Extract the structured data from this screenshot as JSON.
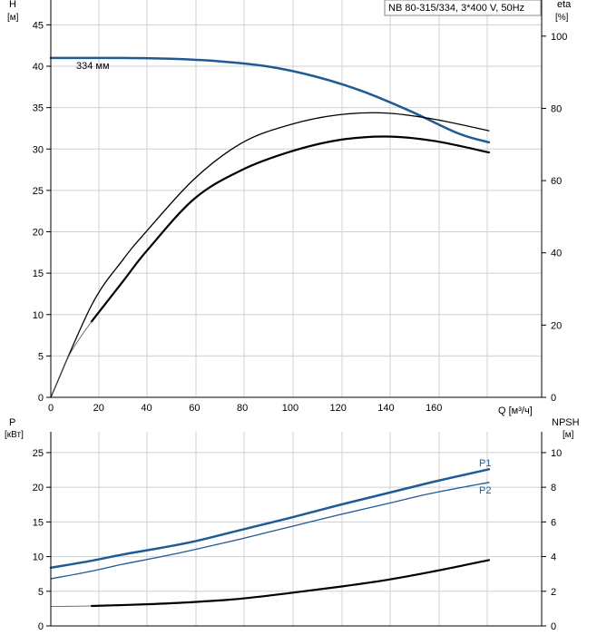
{
  "chart_data": [
    {
      "type": "line",
      "id": "top",
      "title": "NB 80-315/334, 3*400 V, 50Hz",
      "left_axis": {
        "label": "H",
        "unit": "[м]",
        "ylim": [
          0,
          48
        ],
        "ticks": [
          0,
          5,
          10,
          15,
          20,
          25,
          30,
          35,
          40,
          45
        ]
      },
      "right_axis": {
        "label": "eta",
        "unit": "[%]",
        "ylim": [
          0,
          110
        ],
        "ticks": [
          0,
          20,
          40,
          60,
          80,
          100
        ]
      },
      "x_axis": {
        "label": "Q [м³/ч]",
        "xlim": [
          0,
          205
        ],
        "ticks": [
          0,
          20,
          40,
          60,
          80,
          100,
          120,
          140,
          160
        ]
      },
      "grid": true,
      "series": [
        {
          "name": "334 мм",
          "axis": "left",
          "color": "#1f5a96",
          "width": 2.5,
          "x": [
            0,
            17,
            30,
            50,
            70,
            90,
            110,
            130,
            150,
            170,
            183
          ],
          "y": [
            41.0,
            41.0,
            41.0,
            40.9,
            40.6,
            40.0,
            38.8,
            37.0,
            34.6,
            31.9,
            30.8
          ]
        },
        {
          "name": "",
          "axis": "right",
          "color": "#000000",
          "width": 1.3,
          "x": [
            0,
            17,
            30,
            40,
            60,
            80,
            100,
            120,
            140,
            160,
            183
          ],
          "y": [
            0,
            25.5,
            38,
            46,
            60.5,
            70.5,
            75.5,
            78.2,
            78.7,
            77.0,
            73.8
          ]
        },
        {
          "name": "",
          "axis": "right",
          "color": "#000000",
          "width": 2.2,
          "x": [
            17,
            30,
            40,
            60,
            80,
            100,
            120,
            140,
            160,
            183
          ],
          "y": [
            21,
            32,
            40.5,
            55,
            63,
            68,
            71.2,
            72.2,
            71.0,
            67.8
          ]
        },
        {
          "name": "",
          "axis": "right",
          "color": "#555555",
          "width": 0.8,
          "x": [
            0,
            8,
            17
          ],
          "y": [
            0,
            12,
            21
          ]
        }
      ]
    },
    {
      "type": "line",
      "id": "bottom",
      "left_axis": {
        "label": "P",
        "unit": "[кВт]",
        "ylim": [
          0,
          28
        ],
        "ticks": [
          0,
          5,
          10,
          15,
          20,
          25
        ]
      },
      "right_axis": {
        "label": "NPSH",
        "unit": "[м]",
        "ylim": [
          0,
          11.2
        ],
        "ticks": [
          0,
          2,
          4,
          6,
          8,
          10
        ]
      },
      "xlim": [
        0,
        205
      ],
      "grid": true,
      "series": [
        {
          "name": "P1",
          "axis": "left",
          "color": "#1f5a96",
          "width": 2.5,
          "x": [
            0,
            17,
            30,
            45,
            60,
            80,
            100,
            120,
            140,
            160,
            183
          ],
          "y": [
            8.4,
            9.4,
            10.3,
            11.2,
            12.2,
            13.9,
            15.6,
            17.4,
            19.1,
            20.8,
            22.6
          ]
        },
        {
          "name": "P2",
          "axis": "left",
          "color": "#1f5a96",
          "width": 1.3,
          "x": [
            0,
            17,
            30,
            45,
            60,
            80,
            100,
            120,
            140,
            160,
            183
          ],
          "y": [
            6.8,
            7.9,
            8.9,
            9.9,
            11.0,
            12.6,
            14.3,
            16.0,
            17.6,
            19.2,
            20.7
          ]
        },
        {
          "name": "",
          "axis": "right",
          "color": "#000000",
          "width": 2.2,
          "x": [
            17,
            40,
            60,
            80,
            100,
            120,
            140,
            160,
            183
          ],
          "y": [
            1.15,
            1.25,
            1.38,
            1.58,
            1.9,
            2.25,
            2.65,
            3.15,
            3.8
          ]
        },
        {
          "name": "",
          "axis": "right",
          "color": "#555555",
          "width": 0.8,
          "x": [
            0,
            17
          ],
          "y": [
            1.12,
            1.15
          ]
        }
      ]
    }
  ]
}
